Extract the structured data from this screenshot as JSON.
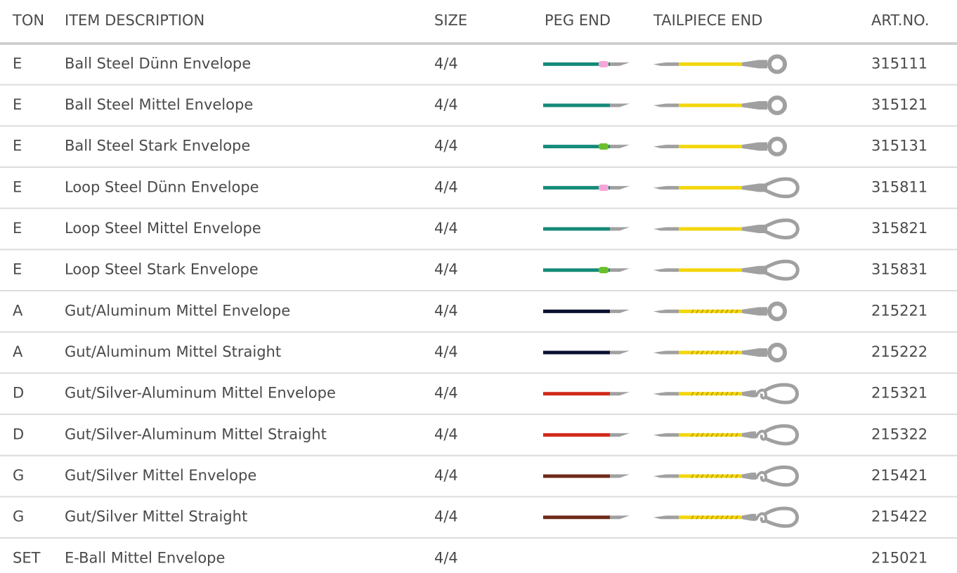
{
  "header": {
    "columns": [
      "TON",
      "ITEM DESCRIPTION",
      "SIZE",
      "PEG END",
      "TAILPIECE END",
      "ART.NO."
    ]
  },
  "rows": [
    {
      "ton": "E",
      "description": "Ball Steel Dünn Envelope",
      "size": "4/4",
      "art_no": "315111"
    },
    {
      "ton": "E",
      "description": "Ball Steel Mittel Envelope",
      "size": "4/4",
      "art_no": "315121"
    },
    {
      "ton": "E",
      "description": "Ball Steel Stark Envelope",
      "size": "4/4",
      "art_no": "315131"
    },
    {
      "ton": "E",
      "description": "Loop Steel Dünn Envelope",
      "size": "4/4",
      "art_no": "315811"
    },
    {
      "ton": "E",
      "description": "Loop Steel Mittel Envelope",
      "size": "4/4",
      "art_no": "315821"
    },
    {
      "ton": "E",
      "description": "Loop Steel Stark Envelope",
      "size": "4/4",
      "art_no": "315831"
    },
    {
      "ton": "A",
      "description": "Gut/Aluminum Mittel Envelope",
      "size": "4/4",
      "art_no": "215221"
    },
    {
      "ton": "A",
      "description": "Gut/Aluminum Mittel Straight",
      "size": "4/4",
      "art_no": "215222"
    },
    {
      "ton": "D",
      "description": "Gut/Silver-Aluminum Mittel Envelope",
      "size": "4/4",
      "art_no": "215321"
    },
    {
      "ton": "D",
      "description": "Gut/Silver-Aluminum Mittel Straight",
      "size": "4/4",
      "art_no": "215322"
    },
    {
      "ton": "G",
      "description": "Gut/Silver Mittel Envelope",
      "size": "4/4",
      "art_no": "215421"
    },
    {
      "ton": "G",
      "description": "Gut/Silver Mittel Straight",
      "size": "4/4",
      "art_no": "215422"
    },
    {
      "ton": "SET",
      "description": "E-Ball Mittel Envelope",
      "size": "4/4",
      "art_no": "215021"
    }
  ]
}
